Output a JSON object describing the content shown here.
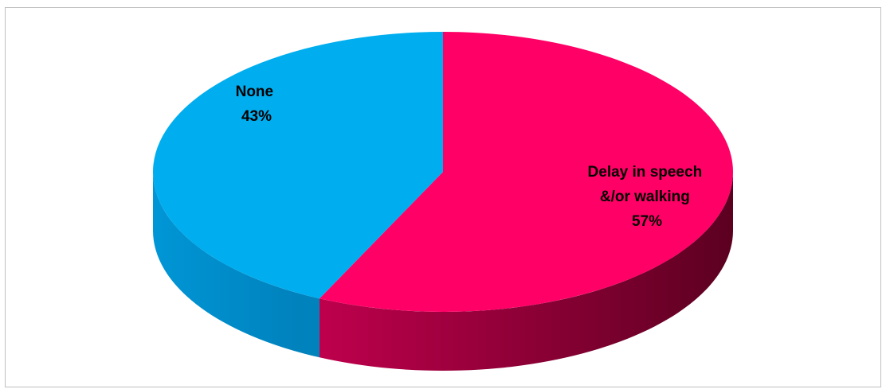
{
  "chart_data": {
    "type": "pie",
    "style": "3d",
    "slices": [
      {
        "label_lines": [
          "Delay in speech",
          "&/or walking"
        ],
        "value": 57,
        "value_label": "57%",
        "color": "#ff0066",
        "side_color_light": "#c4004f",
        "side_color_dark": "#5c0020"
      },
      {
        "label_lines": [
          "None"
        ],
        "value": 43,
        "value_label": "43%",
        "color": "#00aeef",
        "side_color_light": "#0096d6",
        "side_color_dark": "#0082bd"
      }
    ],
    "legend": "none"
  }
}
